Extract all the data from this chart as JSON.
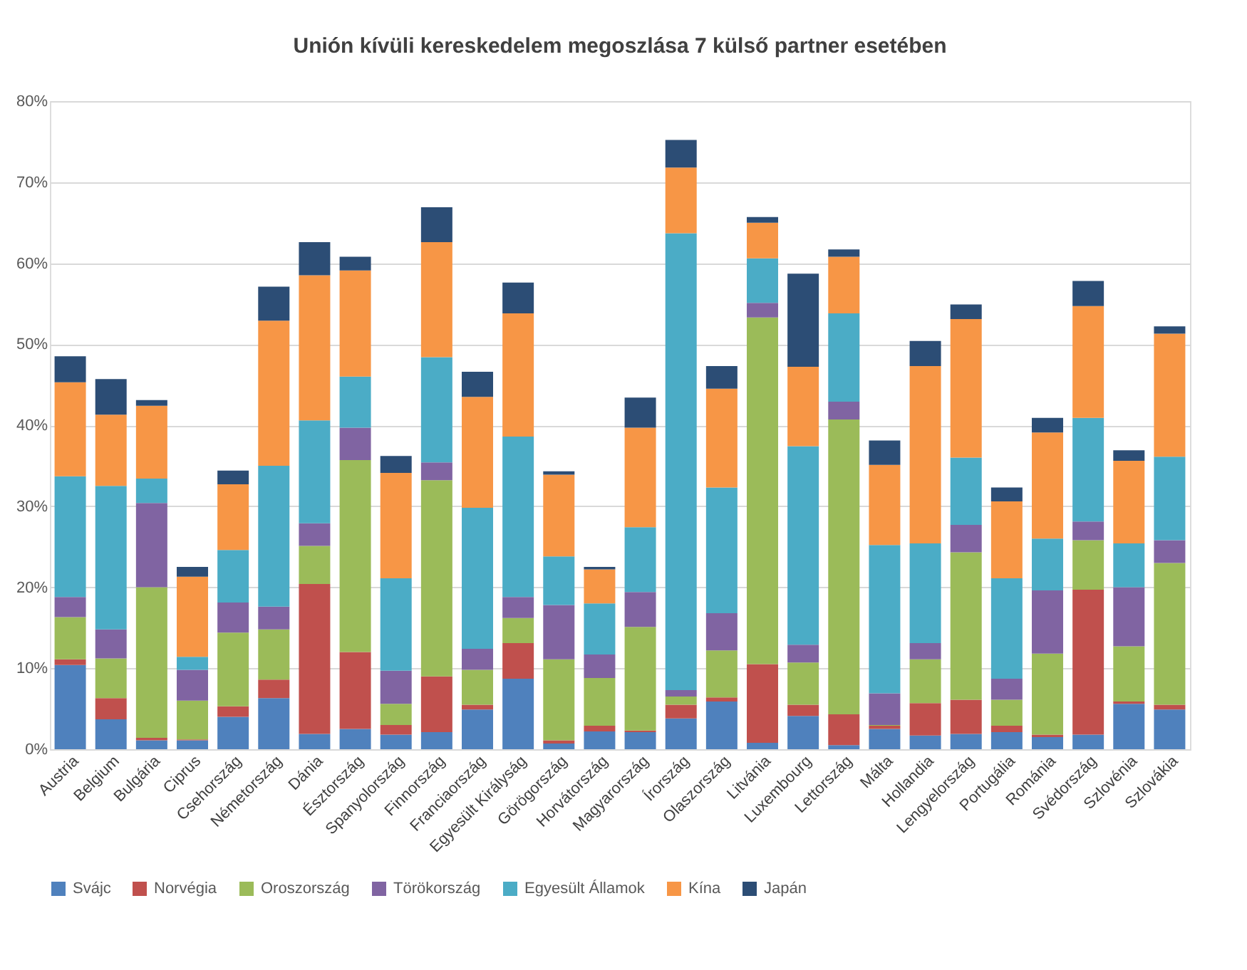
{
  "chart_data": {
    "type": "bar",
    "stacked": true,
    "title": "Unión kívüli kereskedelem  megoszlása 7 külső partner esetében",
    "categories": [
      "Austria",
      "Belgium",
      "Bulgária",
      "Ciprus",
      "Csehország",
      "Németország",
      "Dánia",
      "Észtország",
      "Spanyolország",
      "Finnország",
      "Franciaország",
      "Egyesült Királyság",
      "Görögország",
      "Horvátország",
      "Magyarország",
      "Írország",
      "Olaszország",
      "Litvánia",
      "Luxembourg",
      "Lettország",
      "Málta",
      "Hollandia",
      "Lengyelország",
      "Portugália",
      "Románia",
      "Svédország",
      "Szlovénia",
      "Szlovákia"
    ],
    "series": [
      {
        "name": "Svájc",
        "color": "#4f81bd",
        "values": [
          10.4,
          3.7,
          1.1,
          1.1,
          4.0,
          6.3,
          1.9,
          2.5,
          1.8,
          2.1,
          4.9,
          8.7,
          0.7,
          2.2,
          2.1,
          3.8,
          5.9,
          0.8,
          4.1,
          0.5,
          2.5,
          1.7,
          1.9,
          2.1,
          1.5,
          1.8,
          5.6,
          4.9
        ]
      },
      {
        "name": "Norvégia",
        "color": "#c0504d",
        "values": [
          0.7,
          2.6,
          0.3,
          0.1,
          1.3,
          2.3,
          18.5,
          9.5,
          1.2,
          6.9,
          0.6,
          4.4,
          0.4,
          0.7,
          0.2,
          1.7,
          0.5,
          9.7,
          1.4,
          3.8,
          0.4,
          4.0,
          4.2,
          0.8,
          0.3,
          17.9,
          0.3,
          0.6
        ]
      },
      {
        "name": "Oroszország",
        "color": "#9bbb59",
        "values": [
          5.2,
          4.9,
          18.6,
          4.8,
          9.1,
          6.2,
          4.7,
          23.7,
          2.6,
          24.2,
          4.3,
          3.1,
          10.0,
          5.9,
          12.8,
          1.0,
          5.8,
          42.8,
          5.2,
          36.4,
          0.1,
          5.4,
          18.2,
          3.2,
          10.0,
          6.1,
          6.8,
          17.5
        ]
      },
      {
        "name": "Törökország",
        "color": "#8064a2",
        "values": [
          2.5,
          3.6,
          10.4,
          3.8,
          3.7,
          2.8,
          2.8,
          4.0,
          4.1,
          2.2,
          2.6,
          2.6,
          6.7,
          2.9,
          4.3,
          0.8,
          4.6,
          1.8,
          2.2,
          2.2,
          3.9,
          2.0,
          3.4,
          2.6,
          7.8,
          2.3,
          7.3,
          2.8
        ]
      },
      {
        "name": "Egyesült Államok",
        "color": "#4bacc6",
        "values": [
          14.9,
          17.7,
          3.0,
          1.6,
          6.5,
          17.4,
          12.7,
          6.3,
          11.4,
          13.0,
          17.4,
          19.8,
          6.0,
          6.3,
          8.0,
          56.4,
          15.5,
          5.5,
          24.5,
          10.9,
          18.3,
          12.3,
          8.3,
          12.4,
          6.4,
          12.8,
          5.4,
          10.3
        ]
      },
      {
        "name": "Kína",
        "color": "#f79646",
        "values": [
          11.6,
          8.8,
          9.0,
          9.9,
          8.1,
          17.9,
          17.9,
          13.1,
          13.0,
          14.2,
          13.7,
          15.2,
          10.1,
          4.2,
          12.3,
          8.1,
          12.2,
          4.4,
          9.8,
          7.0,
          9.9,
          21.9,
          17.1,
          9.5,
          13.1,
          13.8,
          10.2,
          15.2
        ]
      },
      {
        "name": "Japán",
        "color": "#2c4d75",
        "values": [
          3.2,
          4.4,
          0.7,
          1.2,
          1.7,
          4.2,
          4.1,
          1.7,
          2.1,
          4.3,
          3.1,
          3.8,
          0.4,
          0.3,
          3.7,
          3.4,
          2.8,
          0.7,
          11.5,
          0.9,
          3.0,
          3.1,
          1.8,
          1.7,
          1.8,
          3.1,
          1.3,
          0.9
        ]
      }
    ],
    "ylim": [
      0,
      80
    ],
    "yticks": [
      {
        "value": 0,
        "label": "0%"
      },
      {
        "value": 10,
        "label": "10%"
      },
      {
        "value": 20,
        "label": "20%"
      },
      {
        "value": 30,
        "label": "30%"
      },
      {
        "value": 40,
        "label": "40%"
      },
      {
        "value": 50,
        "label": "50%"
      },
      {
        "value": 60,
        "label": "60%"
      },
      {
        "value": 70,
        "label": "70%"
      },
      {
        "value": 80,
        "label": "80%"
      }
    ],
    "grid": "y",
    "legend": "bottom"
  }
}
